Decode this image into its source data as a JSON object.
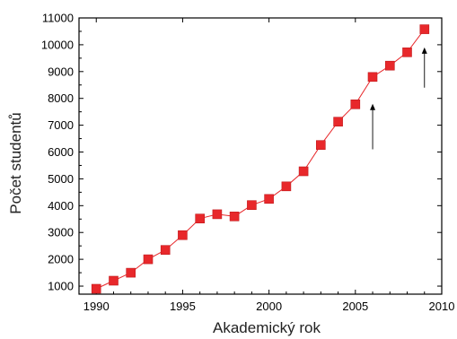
{
  "chart_data": {
    "type": "line",
    "title": "",
    "xlabel": "Akademický rok",
    "ylabel": "Počet studentů",
    "xlim": [
      1989,
      2010
    ],
    "ylim": [
      700,
      11000
    ],
    "x_ticks": [
      1990,
      1995,
      2000,
      2005,
      2010
    ],
    "y_ticks": [
      1000,
      2000,
      3000,
      4000,
      5000,
      6000,
      7000,
      8000,
      9000,
      10000,
      11000
    ],
    "grid": false,
    "legend": "none",
    "marker": "square",
    "series": [
      {
        "color": "#e8282b",
        "x": [
          1990,
          1991,
          1992,
          1993,
          1994,
          1995,
          1996,
          1997,
          1998,
          1999,
          2000,
          2001,
          2002,
          2003,
          2004,
          2005,
          2006,
          2007,
          2008,
          2009
        ],
        "y": [
          900,
          1200,
          1500,
          2000,
          2350,
          2900,
          3520,
          3680,
          3600,
          4020,
          4250,
          4720,
          5280,
          6260,
          7130,
          7780,
          8800,
          9220,
          9720,
          10580
        ]
      }
    ],
    "annotations": [
      {
        "type": "arrow",
        "x": 2006,
        "y_from": 6100,
        "y_to": 7800
      },
      {
        "type": "arrow",
        "x": 2009,
        "y_from": 8400,
        "y_to": 9900
      }
    ]
  }
}
